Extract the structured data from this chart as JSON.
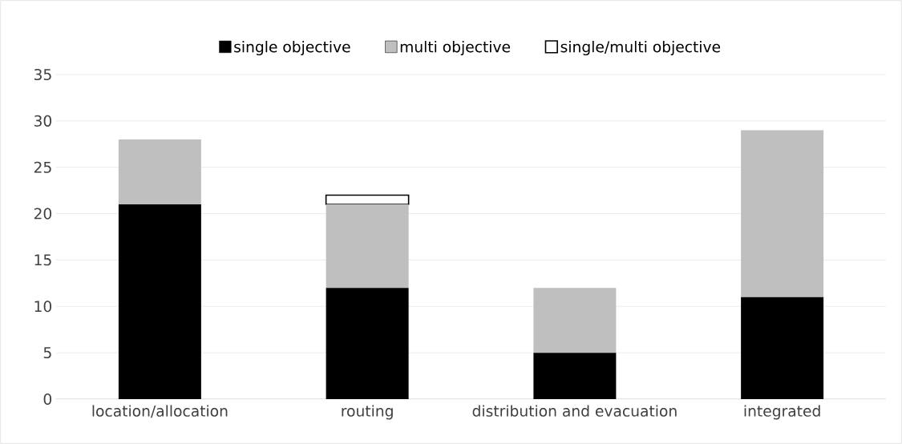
{
  "chart_data": {
    "type": "bar",
    "stacked": true,
    "categories": [
      "location/allocation",
      "routing",
      "distribution and evacuation",
      "integrated"
    ],
    "series": [
      {
        "name": "single objective",
        "color": "#000000",
        "values": [
          21,
          12,
          5,
          11
        ]
      },
      {
        "name": "multi objective",
        "color": "#bfbfbf",
        "values": [
          7,
          9,
          7,
          18
        ]
      },
      {
        "name": "single/multi objective",
        "color": "#ffffff",
        "values": [
          null,
          1,
          null,
          null
        ]
      }
    ],
    "ylim": [
      0,
      35
    ],
    "yticks": [
      0,
      5,
      10,
      15,
      20,
      25,
      30,
      35
    ],
    "grid": "y",
    "legend": "top"
  }
}
